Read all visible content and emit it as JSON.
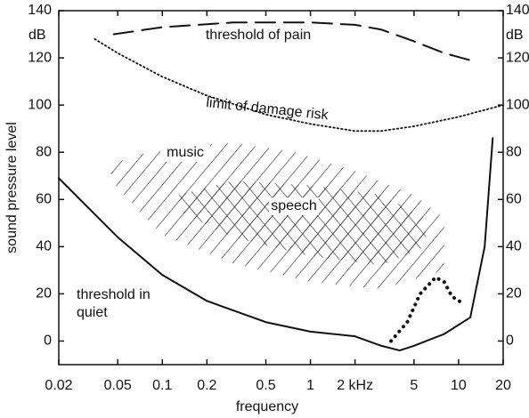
{
  "chart_data": {
    "type": "line",
    "xlabel": "frequency",
    "ylabel": "sound pressure level",
    "yunit": "dB",
    "xscale": "log",
    "xlim": [
      0.02,
      20
    ],
    "xticks": [
      0.02,
      0.05,
      0.1,
      0.2,
      0.5,
      1,
      {
        "value": 2,
        "label": "2 kHz"
      },
      5,
      10,
      20
    ],
    "ylim": [
      -10,
      140
    ],
    "yticks": [
      0,
      20,
      40,
      60,
      80,
      100,
      120,
      140
    ],
    "series": [
      {
        "name": "threshold of pain",
        "color": "#111111",
        "dash": "dashed",
        "x": [
          0.047,
          0.1,
          0.3,
          1,
          2,
          3,
          5,
          8,
          12
        ],
        "values": [
          130,
          133,
          135,
          135,
          134,
          132,
          127,
          122,
          119
        ]
      },
      {
        "name": "limit of damage risk",
        "color": "#111111",
        "dash": "dotted",
        "x": [
          0.035,
          0.05,
          0.1,
          0.2,
          0.5,
          1,
          2,
          3,
          5,
          10,
          20
        ],
        "values": [
          128,
          122,
          112,
          104,
          96,
          92,
          89,
          89,
          91,
          95,
          100
        ]
      },
      {
        "name": "threshold in quiet",
        "color": "#111111",
        "dash": "solid",
        "x": [
          0.02,
          0.05,
          0.1,
          0.2,
          0.5,
          1,
          2,
          3,
          4,
          5,
          8,
          12,
          15,
          17
        ],
        "values": [
          69,
          44,
          28,
          17,
          8,
          4,
          2,
          -2,
          -4,
          -2,
          3,
          10,
          40,
          86
        ]
      },
      {
        "color": "#111111",
        "dash": "bold-dotted",
        "x": [
          3.5,
          4.5,
          5.5,
          7,
          8,
          9,
          10,
          11
        ],
        "values": [
          0,
          8,
          20,
          27,
          25,
          19,
          17,
          16
        ]
      }
    ],
    "regions": [
      {
        "name": "music",
        "hatch": "single",
        "x": [
          0.045,
          0.1,
          0.3,
          0.8,
          2,
          5,
          8,
          8,
          3,
          1,
          0.3,
          0.1,
          0.045
        ],
        "y": [
          75,
          82,
          84,
          80,
          72,
          62,
          52,
          30,
          22,
          25,
          33,
          45,
          68
        ]
      },
      {
        "name": "speech",
        "hatch": "cross",
        "x": [
          0.13,
          0.3,
          1,
          3,
          6,
          6,
          3,
          1,
          0.3,
          0.13
        ],
        "y": [
          62,
          68,
          66,
          62,
          52,
          40,
          32,
          36,
          44,
          55
        ]
      }
    ]
  }
}
